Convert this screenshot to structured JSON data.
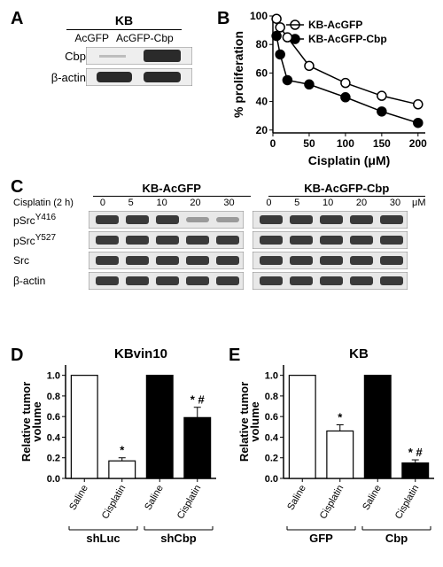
{
  "panelA": {
    "label": "A",
    "header": "KB",
    "lanes": [
      "AcGFP",
      "AcGFP-Cbp"
    ],
    "rows": [
      "Cbp",
      "β-actin"
    ]
  },
  "panelB": {
    "label": "B",
    "ylabel": "% proliferation",
    "xlabel": "Cisplatin (μM)",
    "xlim": [
      0,
      210
    ],
    "ylim": [
      18,
      100
    ],
    "xticks": [
      0,
      50,
      100,
      150,
      200
    ],
    "yticks": [
      20,
      40,
      60,
      80,
      100
    ],
    "series": [
      {
        "name": "KB-AcGFP",
        "marker": "open-circle",
        "color": "#000000",
        "fill": "#ffffff",
        "x": [
          5,
          10,
          20,
          50,
          100,
          150,
          200
        ],
        "y": [
          98,
          92,
          85,
          65,
          53,
          44,
          38
        ]
      },
      {
        "name": "KB-AcGFP-Cbp",
        "marker": "filled-circle",
        "color": "#000000",
        "fill": "#000000",
        "x": [
          5,
          10,
          20,
          50,
          100,
          150,
          200
        ],
        "y": [
          86,
          73,
          55,
          52,
          43,
          33,
          25
        ]
      }
    ],
    "line_width": 1.5,
    "marker_size": 5,
    "axis_fontsize": 14,
    "tick_fontsize": 12,
    "legend_fontsize": 12
  },
  "panelC": {
    "label": "C",
    "left_header": "KB-AcGFP",
    "right_header": "KB-AcGFP-Cbp",
    "row_header": "Cisplatin (2 h)",
    "doses": [
      "0",
      "5",
      "10",
      "20",
      "30"
    ],
    "unit": "μM",
    "rows": [
      "pSrcY416",
      "pSrcY527",
      "Src",
      "β-actin"
    ]
  },
  "panelD": {
    "label": "D",
    "title": "KBvin10",
    "ylabel": "Relative tumor\nvolume",
    "ylim": [
      0,
      1.1
    ],
    "yticks": [
      0.0,
      0.2,
      0.4,
      0.6,
      0.8,
      1.0
    ],
    "groups": [
      "shLuc",
      "shCbp"
    ],
    "bars": [
      {
        "label": "Saline",
        "value": 1.0,
        "fill": "#ffffff",
        "err": 0,
        "marks": ""
      },
      {
        "label": "Cisplatin",
        "value": 0.17,
        "fill": "#ffffff",
        "err": 0.03,
        "marks": "*"
      },
      {
        "label": "Saline",
        "value": 1.0,
        "fill": "#000000",
        "err": 0,
        "marks": ""
      },
      {
        "label": "Cisplatin",
        "value": 0.59,
        "fill": "#000000",
        "err": 0.1,
        "marks": "* #"
      }
    ],
    "bar_width": 0.7
  },
  "panelE": {
    "label": "E",
    "title": "KB",
    "ylabel": "Relative tumor\nvolume",
    "ylim": [
      0,
      1.1
    ],
    "yticks": [
      0.0,
      0.2,
      0.4,
      0.6,
      0.8,
      1.0
    ],
    "groups": [
      "GFP",
      "Cbp"
    ],
    "bars": [
      {
        "label": "Saline",
        "value": 1.0,
        "fill": "#ffffff",
        "err": 0,
        "marks": ""
      },
      {
        "label": "Cisplatin",
        "value": 0.46,
        "fill": "#ffffff",
        "err": 0.06,
        "marks": "*"
      },
      {
        "label": "Saline",
        "value": 1.0,
        "fill": "#000000",
        "err": 0,
        "marks": ""
      },
      {
        "label": "Cisplatin",
        "value": 0.15,
        "fill": "#000000",
        "err": 0.03,
        "marks": "* #"
      }
    ],
    "bar_width": 0.7
  },
  "colors": {
    "band_dark": "#3a3a3a",
    "band_light": "#9a9a9a",
    "band_bg": "#e8e8e8"
  }
}
